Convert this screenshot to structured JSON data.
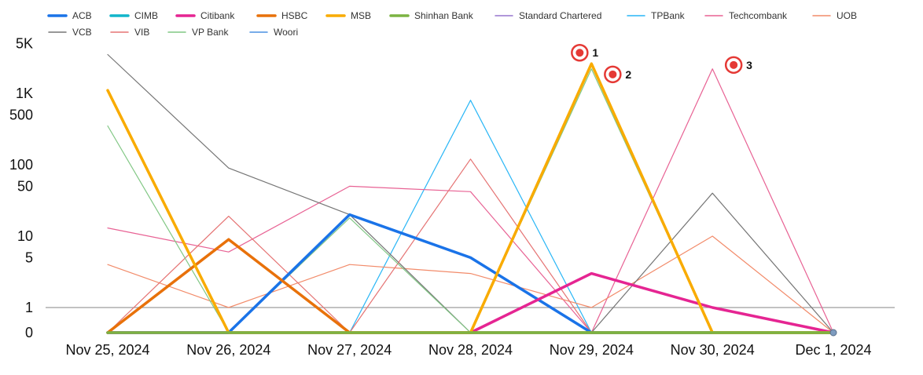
{
  "chart_data": {
    "type": "line",
    "yscale": "log",
    "categories": [
      "Nov 25, 2024",
      "Nov 26, 2024",
      "Nov 27, 2024",
      "Nov 28, 2024",
      "Nov 29, 2024",
      "Nov 30, 2024",
      "Dec 1, 2024"
    ],
    "y_ticks": [
      {
        "value": 0,
        "label": "0"
      },
      {
        "value": 1,
        "label": "1"
      },
      {
        "value": 5,
        "label": "5"
      },
      {
        "value": 10,
        "label": "10"
      },
      {
        "value": 50,
        "label": "50"
      },
      {
        "value": 100,
        "label": "100"
      },
      {
        "value": 500,
        "label": "500"
      },
      {
        "value": 1000,
        "label": "1K"
      },
      {
        "value": 5000,
        "label": "5K"
      }
    ],
    "ylim": [
      0,
      5000
    ],
    "reference_line": 1,
    "legend_position": "top",
    "series": [
      {
        "name": "ACB",
        "color": "#1a73e8",
        "width": 3.5,
        "values": [
          0,
          0,
          20,
          5,
          0,
          0,
          0
        ]
      },
      {
        "name": "CIMB",
        "color": "#12b5cb",
        "width": 3.5,
        "values": [
          0,
          0,
          0,
          0,
          0,
          0,
          0
        ]
      },
      {
        "name": "Citibank",
        "color": "#e52592",
        "width": 3.5,
        "values": [
          0,
          0,
          0,
          0,
          3,
          1,
          0
        ]
      },
      {
        "name": "HSBC",
        "color": "#e8710a",
        "width": 3.5,
        "values": [
          0,
          9,
          0,
          0,
          0,
          0,
          0
        ]
      },
      {
        "name": "MSB",
        "color": "#f9ab00",
        "width": 3.5,
        "values": [
          1100,
          0,
          0,
          0,
          2600,
          0,
          0
        ]
      },
      {
        "name": "Shinhan Bank",
        "color": "#7cb342",
        "width": 3.5,
        "values": [
          0,
          0,
          0,
          0,
          0,
          0,
          0
        ]
      },
      {
        "name": "Standard Chartered",
        "color": "#9575cd",
        "width": 1.2,
        "values": [
          0,
          0,
          0,
          0,
          0,
          0,
          0
        ]
      },
      {
        "name": "TPBank",
        "color": "#29b6f6",
        "width": 1.2,
        "values": [
          0,
          0,
          0,
          800,
          0,
          0,
          0
        ]
      },
      {
        "name": "Techcombank",
        "color": "#e86294",
        "width": 1.2,
        "values": [
          13,
          6,
          50,
          42,
          0,
          2200,
          0
        ]
      },
      {
        "name": "UOB",
        "color": "#f28b6a",
        "width": 1.2,
        "values": [
          4,
          1,
          4,
          3,
          1,
          10,
          0
        ]
      },
      {
        "name": "VCB",
        "color": "#757575",
        "width": 1.2,
        "values": [
          3500,
          90,
          20,
          0,
          0,
          40,
          0
        ]
      },
      {
        "name": "VIB",
        "color": "#e57373",
        "width": 1.2,
        "values": [
          0,
          19,
          0,
          120,
          0,
          0,
          0
        ]
      },
      {
        "name": "VP Bank",
        "color": "#81c784",
        "width": 1.2,
        "values": [
          350,
          0,
          18,
          0,
          2200,
          0,
          0
        ]
      },
      {
        "name": "Woori",
        "color": "#4a90e2",
        "width": 1.2,
        "values": [
          0,
          0,
          0,
          0,
          0,
          0,
          0
        ]
      }
    ],
    "annotations": [
      {
        "label": "1",
        "category_index": 4,
        "value": 2600
      },
      {
        "label": "2",
        "category_index": 4,
        "value": 2200
      },
      {
        "label": "3",
        "category_index": 5,
        "value": 2200
      }
    ]
  }
}
